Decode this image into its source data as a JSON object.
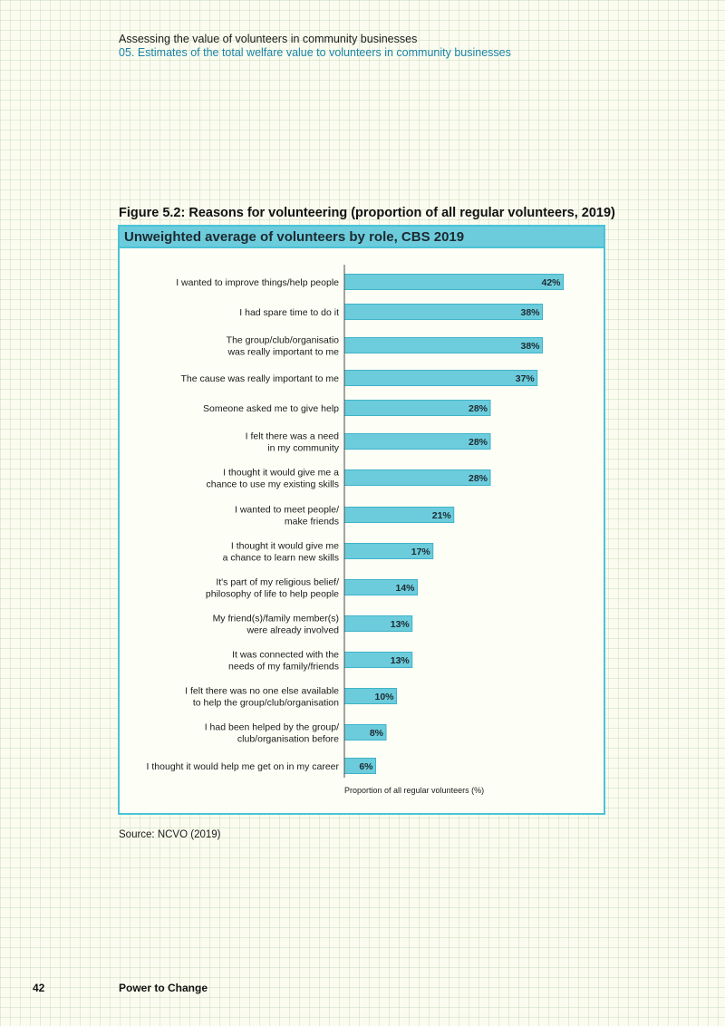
{
  "header": {
    "line1": "Assessing the value of volunteers in community businesses",
    "line2": "05. Estimates of the total welfare value to volunteers in community businesses"
  },
  "figure": {
    "title": "Figure 5.2: Reasons for volunteering (proportion of all regular volunteers, 2019)",
    "subtitle": "Unweighted average of volunteers by role, CBS 2019"
  },
  "chart_data": {
    "type": "bar",
    "orientation": "horizontal",
    "title": "Figure 5.2: Reasons for volunteering (proportion of all regular volunteers, 2019)",
    "subtitle": "Unweighted average of volunteers by role, CBS 2019",
    "xlabel": "Proportion of all regular volunteers (%)",
    "ylabel": "",
    "xlim": [
      0,
      50
    ],
    "grid": false,
    "bar_color": "#6cccdc",
    "bar_edge_color": "#3fb3c9",
    "categories": [
      [
        "I wanted to improve things/help people"
      ],
      [
        "I had spare time to do it"
      ],
      [
        "The group/club/organisatio",
        "was really important to me"
      ],
      [
        "The cause was really important to me"
      ],
      [
        "Someone asked me to give help"
      ],
      [
        "I felt there was a need",
        "in my community"
      ],
      [
        "I thought it would give me a",
        "chance to use my existing skills"
      ],
      [
        "I wanted to meet people/",
        "make friends"
      ],
      [
        "I thought it would give me",
        "a chance to learn new skills"
      ],
      [
        "It's part of my religious belief/",
        "philosophy of life to help people"
      ],
      [
        "My friend(s)/family member(s)",
        "were already involved"
      ],
      [
        "It was connected with the",
        "needs of my family/friends"
      ],
      [
        "I felt there was no one else available",
        "to help the group/club/organisation"
      ],
      [
        "I had been helped by the group/",
        "club/organisation before"
      ],
      [
        "I thought it would help me get on in my career"
      ]
    ],
    "values": [
      42,
      38,
      38,
      37,
      28,
      28,
      28,
      21,
      17,
      14,
      13,
      13,
      10,
      8,
      6
    ],
    "value_labels": [
      "42%",
      "38%",
      "38%",
      "37%",
      "28%",
      "28%",
      "28%",
      "21%",
      "17%",
      "14%",
      "13%",
      "13%",
      "10%",
      "8%",
      "6%"
    ]
  },
  "source": "Source: NCVO (2019)",
  "footer": {
    "page_number": "42",
    "organisation": "Power to Change"
  }
}
